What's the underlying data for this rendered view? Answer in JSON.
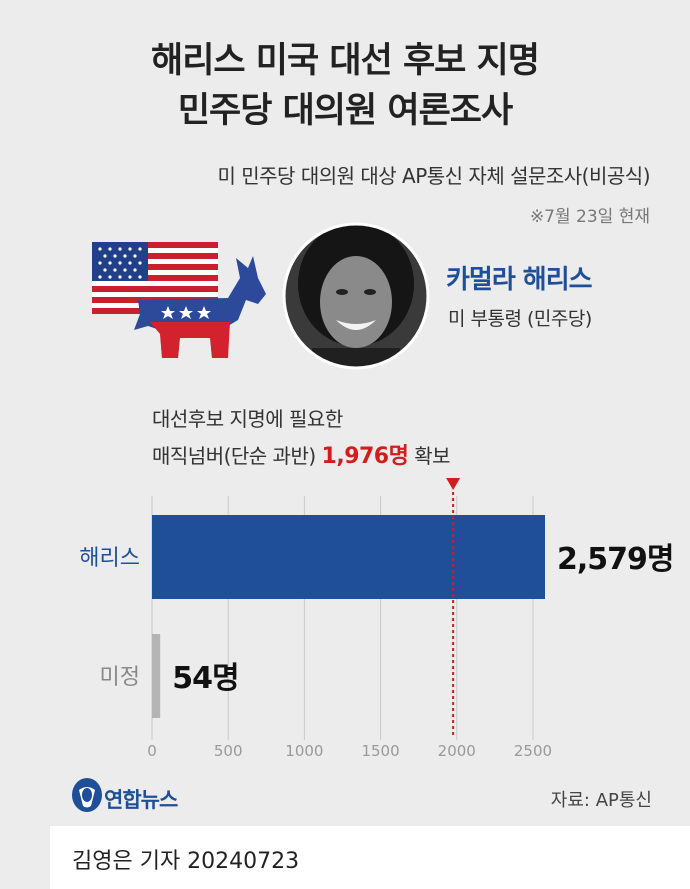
{
  "header": {
    "title_line1": "해리스 미국 대선 후보 지명",
    "title_line2": "민주당 대의원 여론조사",
    "subtitle": "미 민주당 대의원 대상 AP통신 자체 설문조사(비공식)",
    "date": "※7월 23일 현재"
  },
  "candidate": {
    "name": "카멀라 해리스",
    "role": "미 부통령 (민주당)"
  },
  "threshold_note": {
    "line1": "대선후보 지명에 필요한",
    "line2_prefix": "매직넘버(단순 과반) ",
    "line2_highlight": "1,976명",
    "line2_suffix": " 확보"
  },
  "chart_data": {
    "type": "bar",
    "orientation": "horizontal",
    "categories": [
      "해리스",
      "미정"
    ],
    "values": [
      2579,
      54
    ],
    "value_labels": [
      "2,579명",
      "54명"
    ],
    "xlim": [
      0,
      2700
    ],
    "x_ticks": [
      0,
      500,
      1000,
      1500,
      2000,
      2500
    ],
    "threshold": 1976,
    "colors": {
      "해리스": "#1f4f99",
      "미정": "#b5b5b5",
      "threshold": "#d31c1c"
    }
  },
  "footer": {
    "logo": "연합뉴스",
    "source": "자료: AP통신",
    "reporter": "김영은 기자  20240723"
  }
}
